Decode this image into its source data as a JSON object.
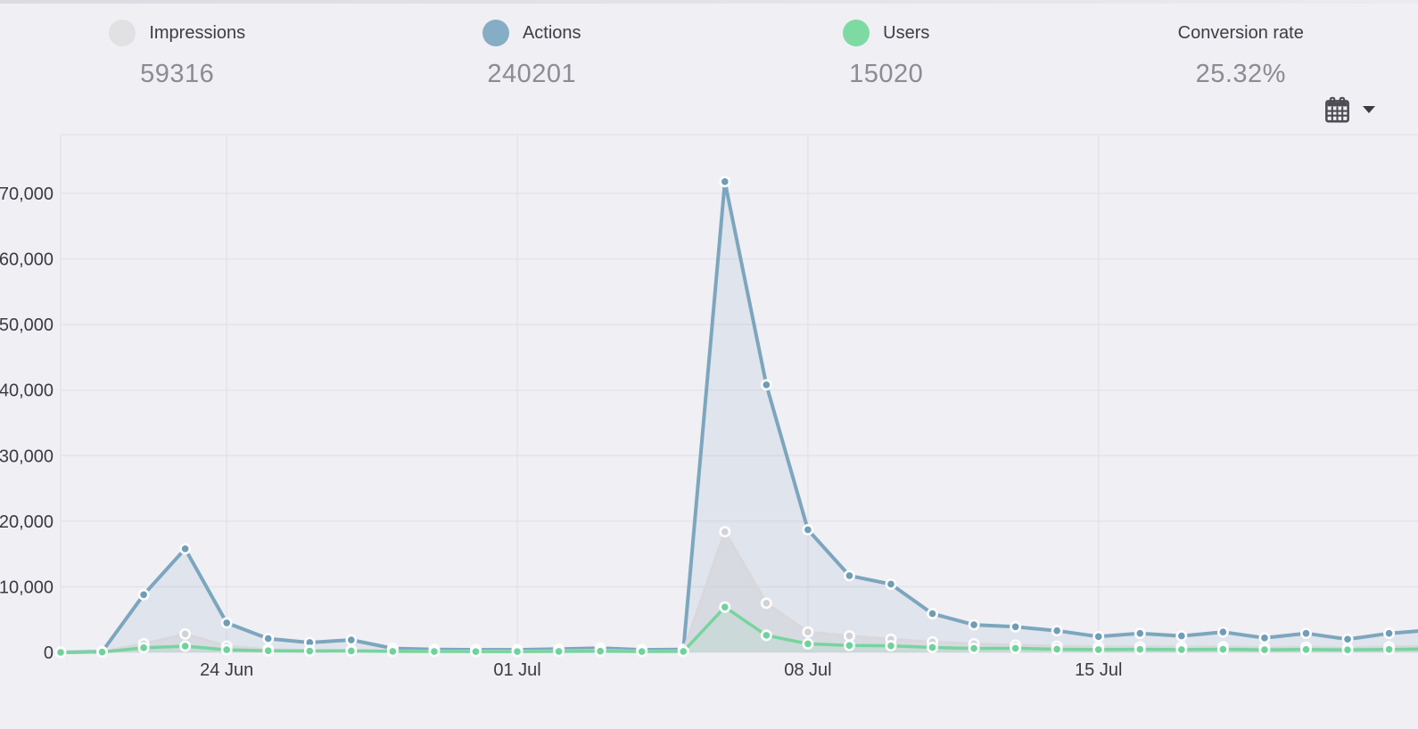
{
  "header": {
    "metrics": [
      {
        "key": "impressions",
        "label": "Impressions",
        "value": "59316",
        "color": "#e1e0e3"
      },
      {
        "key": "actions",
        "label": "Actions",
        "value": "240201",
        "color": "#85adc5"
      },
      {
        "key": "users",
        "label": "Users",
        "value": "15020",
        "color": "#7edaa3"
      },
      {
        "key": "conversion",
        "label": "Conversion rate",
        "value": "25.32%",
        "color": ""
      }
    ]
  },
  "toolbar": {
    "icons": [
      "calendar-icon",
      "caret-down-icon"
    ]
  },
  "chart_data": {
    "type": "area",
    "title": "",
    "xlabel": "",
    "ylabel": "",
    "grid": true,
    "legend_position": "top",
    "ylim": [
      0,
      79000
    ],
    "y_ticks": [
      0,
      10000,
      20000,
      30000,
      40000,
      50000,
      60000,
      70000
    ],
    "x": [
      "20 Jun",
      "21 Jun",
      "22 Jun",
      "23 Jun",
      "24 Jun",
      "25 Jun",
      "26 Jun",
      "27 Jun",
      "28 Jun",
      "29 Jun",
      "30 Jun",
      "01 Jul",
      "02 Jul",
      "03 Jul",
      "04 Jul",
      "05 Jul",
      "06 Jul",
      "07 Jul",
      "08 Jul",
      "09 Jul",
      "10 Jul",
      "11 Jul",
      "12 Jul",
      "13 Jul",
      "14 Jul",
      "15 Jul",
      "16 Jul",
      "17 Jul",
      "18 Jul",
      "19 Jul",
      "20 Jul",
      "21 Jul",
      "22 Jul",
      "23 Jul"
    ],
    "x_axis_ticks": [
      {
        "index": 4,
        "label": "24 Jun"
      },
      {
        "index": 11,
        "label": "01 Jul"
      },
      {
        "index": 18,
        "label": "08 Jul"
      },
      {
        "index": 25,
        "label": "15 Jul"
      }
    ],
    "series": [
      {
        "name": "Actions",
        "line_color": "#7ca6be",
        "dot_color": "#6f9cb6",
        "fill_color": "rgba(124,166,190,0.14)",
        "line_width": 4,
        "values": [
          0,
          100,
          8800,
          15800,
          4500,
          2100,
          1500,
          1900,
          600,
          450,
          400,
          400,
          500,
          650,
          400,
          450,
          71800,
          40800,
          18700,
          11700,
          10400,
          5900,
          4200,
          3900,
          3300,
          2400,
          2900,
          2500,
          3100,
          2200,
          2900,
          2000,
          2900,
          3400
        ]
      },
      {
        "name": "Impressions",
        "line_color": "#d8d7dc",
        "dot_color": "#d2d1d6",
        "fill_color": "rgba(198,198,206,0.32)",
        "line_width": 3,
        "values": [
          0,
          80,
          1300,
          2800,
          950,
          450,
          300,
          350,
          250,
          200,
          200,
          200,
          250,
          300,
          200,
          250,
          18400,
          7500,
          3100,
          2500,
          2000,
          1600,
          1300,
          1100,
          950,
          800,
          850,
          800,
          850,
          700,
          800,
          650,
          850,
          950
        ]
      },
      {
        "name": "Users",
        "line_color": "#76d59e",
        "dot_color": "#6fd29b",
        "fill_color": "rgba(118,213,158,0.13)",
        "line_width": 3.5,
        "values": [
          0,
          50,
          700,
          950,
          400,
          250,
          200,
          220,
          150,
          130,
          120,
          120,
          150,
          180,
          130,
          150,
          6900,
          2600,
          1300,
          1050,
          1000,
          750,
          600,
          620,
          480,
          420,
          460,
          420,
          470,
          400,
          440,
          380,
          450,
          550
        ]
      }
    ]
  }
}
